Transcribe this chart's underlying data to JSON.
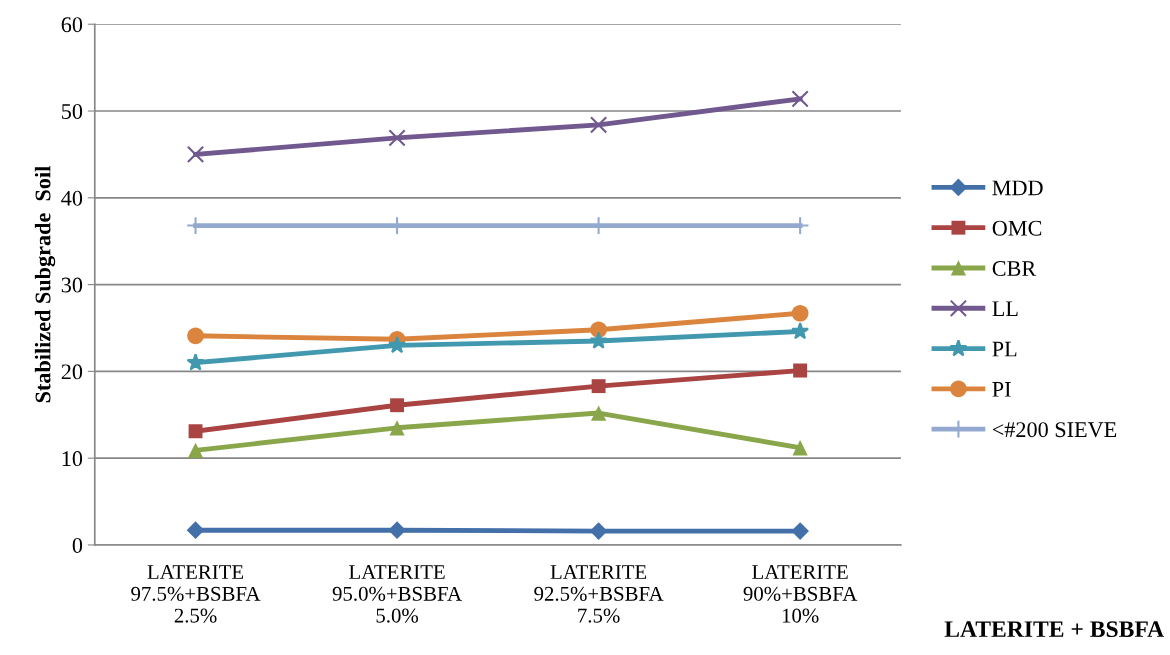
{
  "chart_data": {
    "type": "line",
    "xlabel": "LATERITE + BSBFA",
    "ylabel": "Stabilized Subgrade  Soil",
    "categories": [
      "LATERITE\n97.5%+BSBFA\n2.5%",
      "LATERITE\n95.0%+BSBFA\n5.0%",
      "LATERITE\n92.5%+BSBFA\n7.5%",
      "LATERITE\n90%+BSBFA\n10%"
    ],
    "ylim": [
      0,
      60
    ],
    "yticks": [
      0,
      10,
      20,
      30,
      40,
      50,
      60
    ],
    "grid": "y",
    "legend": "right",
    "series": [
      {
        "name": "MDD",
        "color": "#4470aa",
        "marker": "diamond",
        "values": [
          1.7,
          1.7,
          1.6,
          1.6
        ]
      },
      {
        "name": "OMC",
        "color": "#aa4442",
        "marker": "square",
        "values": [
          13.1,
          16.1,
          18.3,
          20.1
        ]
      },
      {
        "name": "CBR",
        "color": "#89a64b",
        "marker": "triangle",
        "values": [
          10.9,
          13.5,
          15.2,
          11.2
        ]
      },
      {
        "name": "LL",
        "color": "#71588f",
        "marker": "cross",
        "values": [
          45.0,
          46.9,
          48.4,
          51.4
        ]
      },
      {
        "name": "PL",
        "color": "#4198af",
        "marker": "star",
        "values": [
          21.0,
          23.0,
          23.5,
          24.6
        ]
      },
      {
        "name": "PI",
        "color": "#db843d",
        "marker": "circle",
        "values": [
          24.1,
          23.7,
          24.8,
          26.7
        ]
      },
      {
        "name": "<#200 SIEVE",
        "color": "#93a9cf",
        "marker": "plus",
        "values": [
          36.8,
          36.8,
          36.8,
          36.8
        ]
      }
    ]
  }
}
